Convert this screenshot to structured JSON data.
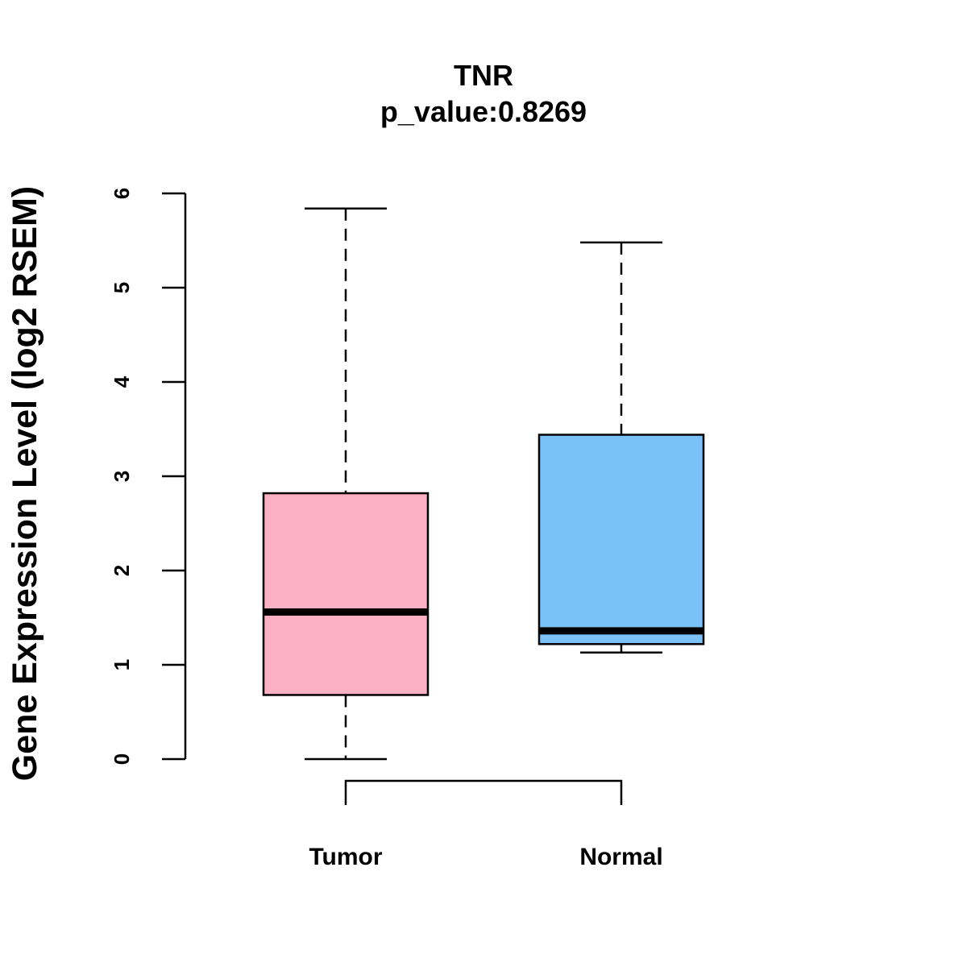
{
  "chart_data": {
    "type": "box",
    "title": "TNR",
    "subtitle": "p_value:0.8269",
    "xlabel": "",
    "ylabel": "Gene Expression Level (log2 RSEM)",
    "ylim": [
      0,
      6
    ],
    "yticks": [
      "0",
      "1",
      "2",
      "3",
      "4",
      "5",
      "6"
    ],
    "grid": false,
    "categories": [
      "Tumor",
      "Normal"
    ],
    "series": [
      {
        "name": "Tumor",
        "color": "#FBB1C3",
        "whisker_low": 0.0,
        "q1": 0.68,
        "median": 1.56,
        "q3": 2.82,
        "whisker_high": 5.84
      },
      {
        "name": "Normal",
        "color": "#79C1F7",
        "whisker_low": 1.13,
        "q1": 1.22,
        "median": 1.36,
        "q3": 3.44,
        "whisker_high": 5.48
      }
    ],
    "comparison_bracket": [
      "Tumor",
      "Normal"
    ]
  }
}
